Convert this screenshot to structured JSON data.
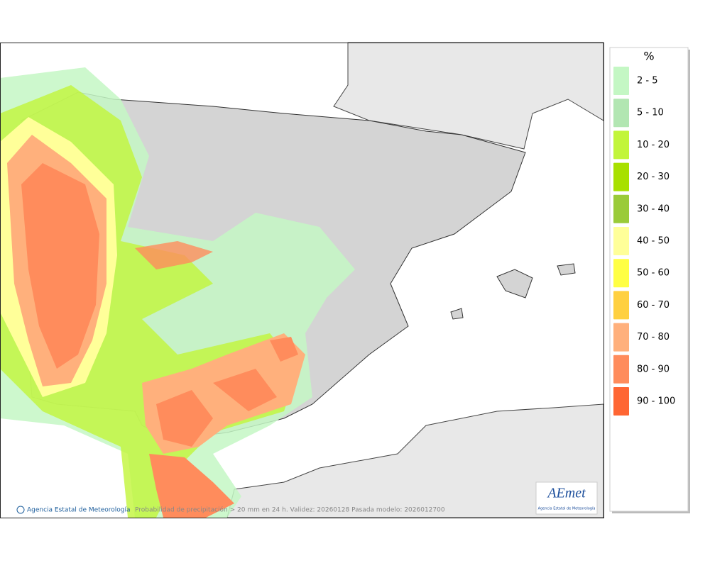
{
  "legend": {
    "title": "%",
    "items": [
      {
        "label": "2 - 5",
        "color": "#c4f7c4"
      },
      {
        "label": "5 - 10",
        "color": "#b2e6b2"
      },
      {
        "label": "10 - 20",
        "color": "#c2f53a"
      },
      {
        "label": "20 - 30",
        "color": "#a8e000"
      },
      {
        "label": "30 - 40",
        "color": "#9acb38"
      },
      {
        "label": "40 - 50",
        "color": "#ffff99"
      },
      {
        "label": "50 - 60",
        "color": "#ffff44"
      },
      {
        "label": "60 - 70",
        "color": "#ffd040"
      },
      {
        "label": "70 - 80",
        "color": "#ffb07c"
      },
      {
        "label": "80 - 90",
        "color": "#ff8c5c"
      },
      {
        "label": "90 - 100",
        "color": "#ff6633"
      }
    ]
  },
  "footer": {
    "agency": "Agencia Estatal de Meteorología",
    "caption": "Probabilidad de precipitación > 20 mm en 24 h. Validez: 20260128 Pasada modelo: 2026012700"
  },
  "logo": {
    "name": "AEmet",
    "subtitle": "Agencia Estatal de Meteorología"
  }
}
